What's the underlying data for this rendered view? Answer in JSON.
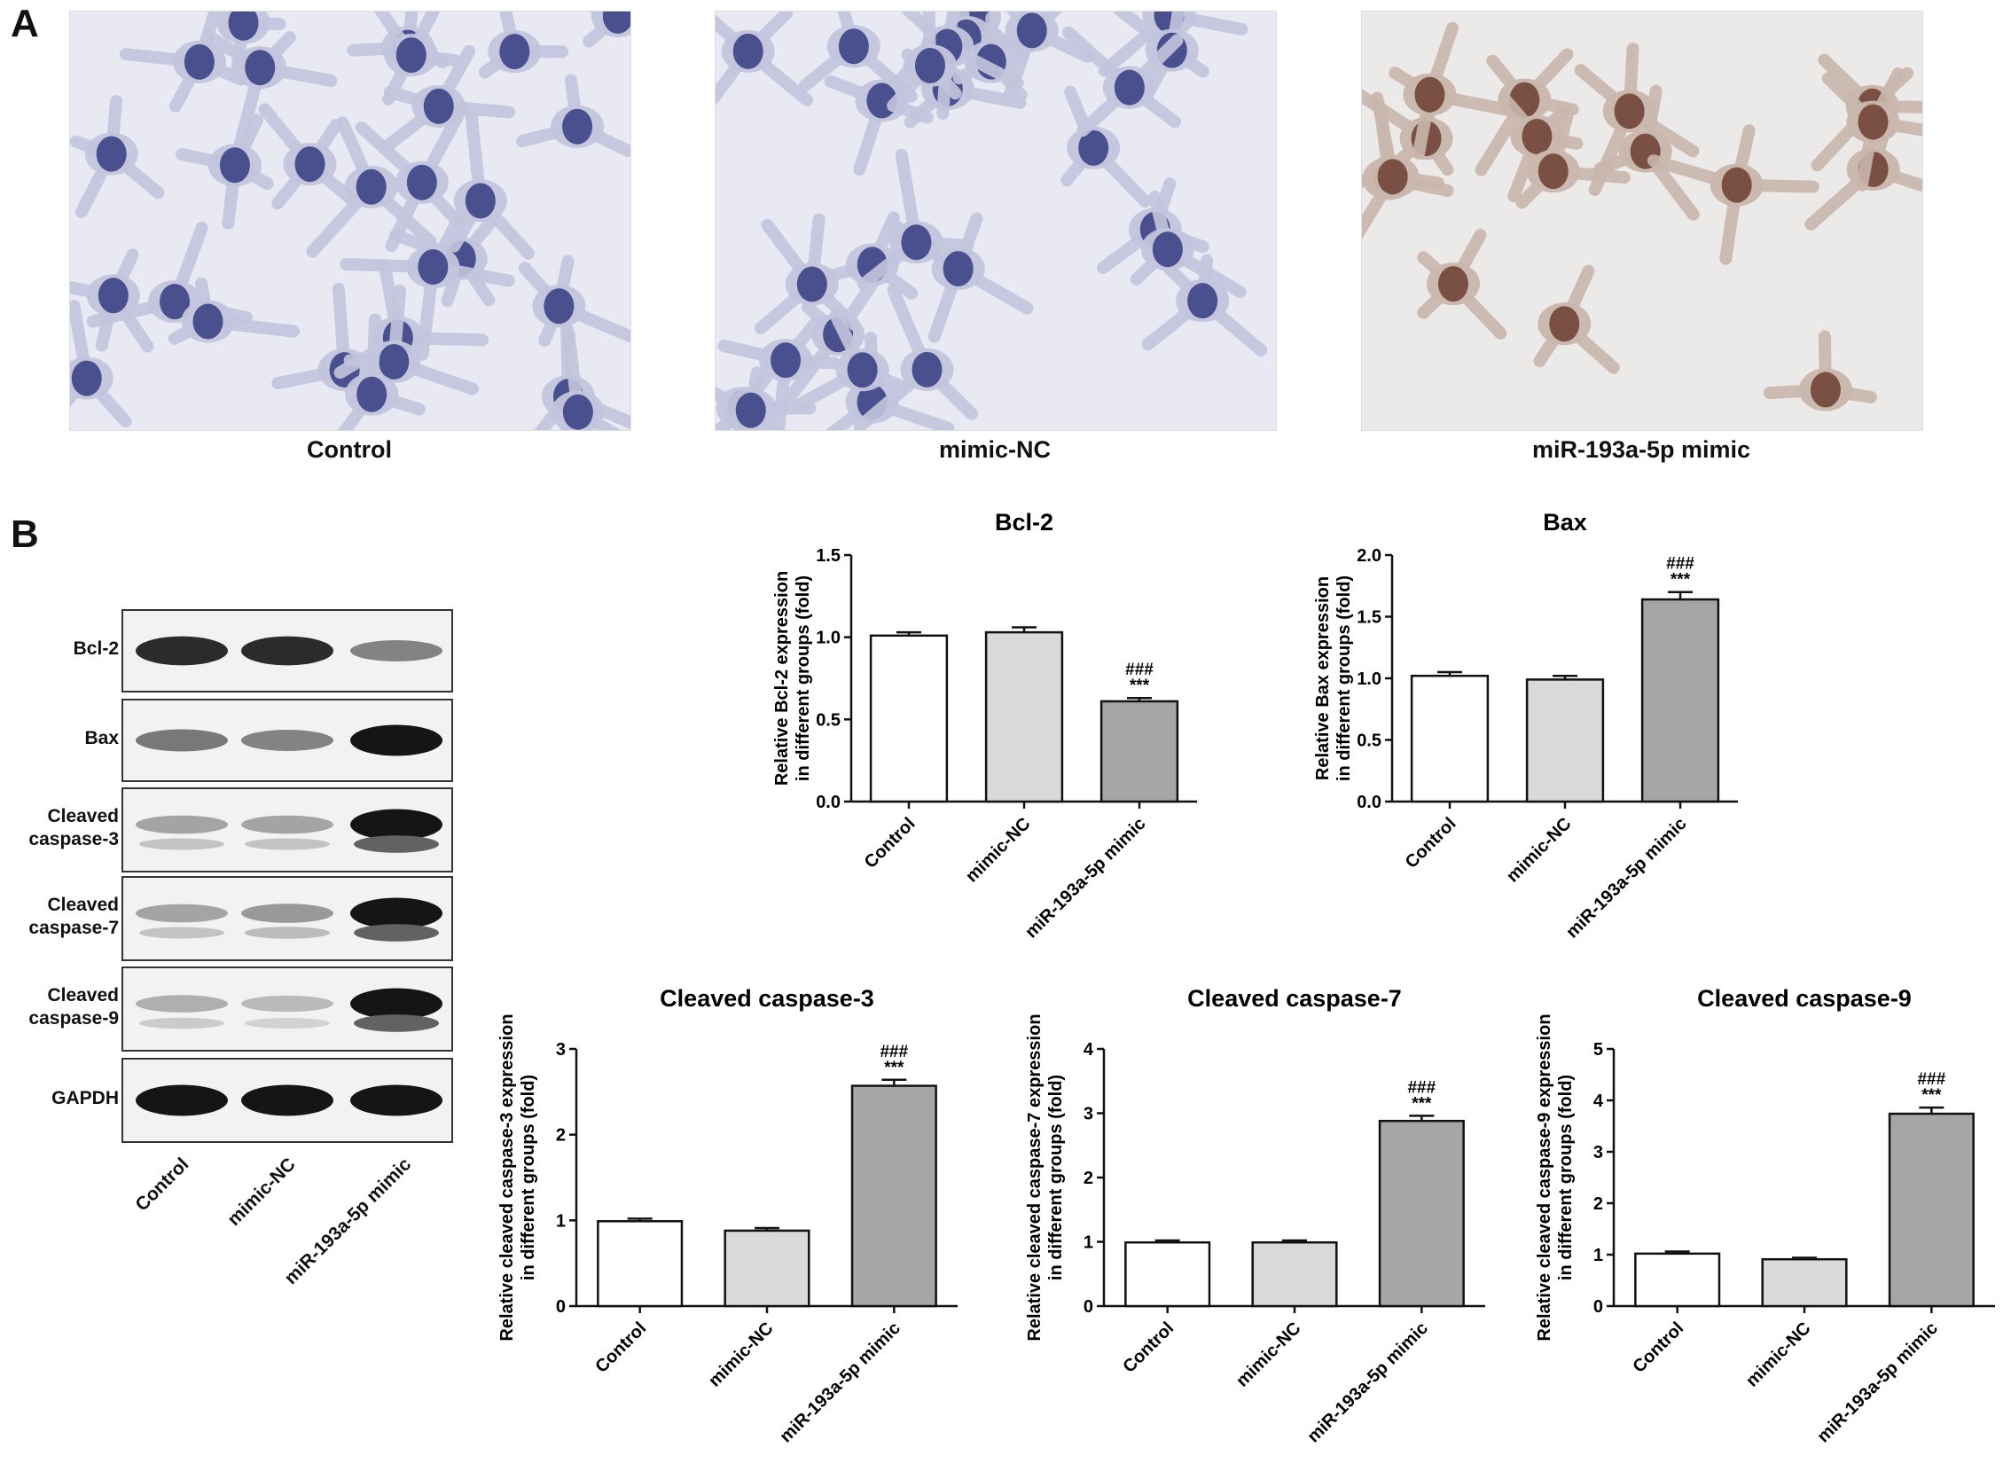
{
  "panels": {
    "a": "A",
    "b": "B"
  },
  "micrographs": [
    {
      "label": "Control",
      "stain": "blue"
    },
    {
      "label": "mimic-NC",
      "stain": "blue"
    },
    {
      "label": "miR-193a-5p mimic",
      "stain": "brown"
    }
  ],
  "western_blot": {
    "bands": [
      {
        "label": "Bcl-2",
        "intensities": [
          0.85,
          0.85,
          0.45
        ]
      },
      {
        "label": "Bax",
        "intensities": [
          0.5,
          0.45,
          0.95
        ]
      },
      {
        "label": "Cleaved\ncaspase-3",
        "intensities": [
          0.3,
          0.3,
          0.95
        ]
      },
      {
        "label": "Cleaved\ncaspase-7",
        "intensities": [
          0.3,
          0.35,
          0.95
        ]
      },
      {
        "label": "Cleaved\ncaspase-9",
        "intensities": [
          0.25,
          0.2,
          0.95
        ]
      },
      {
        "label": "GAPDH",
        "intensities": [
          0.95,
          0.95,
          0.95
        ]
      }
    ],
    "lanes": [
      "Control",
      "mimic-NC",
      "miR-193a-5p mimic"
    ]
  },
  "chart_data": [
    {
      "type": "bar",
      "title": "Bcl-2",
      "ylabel": "Relative Bcl-2 expression in different groups (fold)",
      "categories": [
        "Control",
        "mimic-NC",
        "miR-193a-5p mimic"
      ],
      "values": [
        1.01,
        1.03,
        0.61
      ],
      "errors": [
        0.02,
        0.03,
        0.02
      ],
      "ylim": [
        0,
        1.5
      ],
      "yticks": [
        "0.0",
        "0.5",
        "1.0",
        "1.5"
      ],
      "sig": [
        "",
        "",
        "###\n***"
      ],
      "colors": [
        "#ffffff",
        "#d9d9d9",
        "#a6a6a6"
      ]
    },
    {
      "type": "bar",
      "title": "Bax",
      "ylabel": "Relative Bax expression in different groups (fold)",
      "categories": [
        "Control",
        "mimic-NC",
        "miR-193a-5p mimic"
      ],
      "values": [
        1.02,
        0.99,
        1.64
      ],
      "errors": [
        0.03,
        0.03,
        0.06
      ],
      "ylim": [
        0,
        2.0
      ],
      "yticks": [
        "0.0",
        "0.5",
        "1.0",
        "1.5",
        "2.0"
      ],
      "sig": [
        "",
        "",
        "###\n***"
      ],
      "colors": [
        "#ffffff",
        "#d9d9d9",
        "#a6a6a6"
      ]
    },
    {
      "type": "bar",
      "title": "Cleaved caspase-3",
      "ylabel": "Relative cleaved caspase-3 expression in different groups (fold)",
      "categories": [
        "Control",
        "mimic-NC",
        "miR-193a-5p mimic"
      ],
      "values": [
        0.99,
        0.88,
        2.57
      ],
      "errors": [
        0.03,
        0.03,
        0.07
      ],
      "ylim": [
        0,
        3
      ],
      "yticks": [
        "0",
        "1",
        "2",
        "3"
      ],
      "sig": [
        "",
        "",
        "###\n***"
      ],
      "colors": [
        "#ffffff",
        "#d9d9d9",
        "#a6a6a6"
      ]
    },
    {
      "type": "bar",
      "title": "Cleaved caspase-7",
      "ylabel": "Relative cleaved caspase-7 expression in different groups (fold)",
      "categories": [
        "Control",
        "mimic-NC",
        "miR-193a-5p mimic"
      ],
      "values": [
        0.99,
        0.99,
        2.88
      ],
      "errors": [
        0.03,
        0.03,
        0.08
      ],
      "ylim": [
        0,
        4
      ],
      "yticks": [
        "0",
        "1",
        "2",
        "3",
        "4"
      ],
      "sig": [
        "",
        "",
        "###\n***"
      ],
      "colors": [
        "#ffffff",
        "#d9d9d9",
        "#a6a6a6"
      ]
    },
    {
      "type": "bar",
      "title": "Cleaved caspase-9",
      "ylabel": "Relative cleaved caspase-9 expression in different groups (fold)",
      "categories": [
        "Control",
        "mimic-NC",
        "miR-193a-5p mimic"
      ],
      "values": [
        1.02,
        0.91,
        3.74
      ],
      "errors": [
        0.04,
        0.03,
        0.12
      ],
      "ylim": [
        0,
        5
      ],
      "yticks": [
        "0",
        "1",
        "2",
        "3",
        "4",
        "5"
      ],
      "sig": [
        "",
        "",
        "###\n***"
      ],
      "colors": [
        "#ffffff",
        "#d9d9d9",
        "#a6a6a6"
      ]
    }
  ]
}
